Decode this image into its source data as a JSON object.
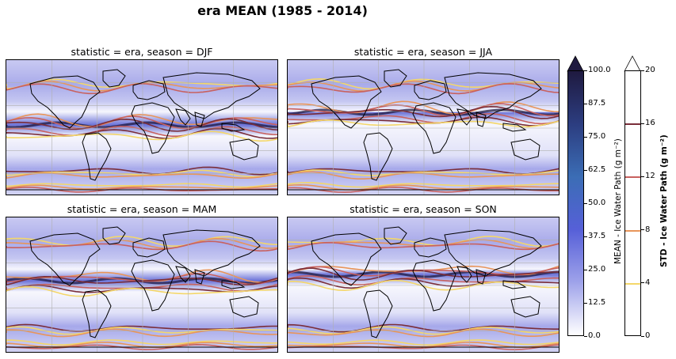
{
  "figure": {
    "title": "era MEAN (1985 - 2014)"
  },
  "panels": [
    {
      "title": "statistic = era, season = DJF"
    },
    {
      "title": "statistic = era, season = JJA"
    },
    {
      "title": "statistic = era, season = MAM"
    },
    {
      "title": "statistic = era, season = SON"
    }
  ],
  "colorbar_mean": {
    "label": "MEAN - Ice Water Path (g m⁻²)",
    "ticks": [
      "0.0",
      "12.5",
      "25.0",
      "37.5",
      "50.0",
      "62.5",
      "75.0",
      "87.5",
      "100.0"
    ],
    "range": [
      0,
      100
    ],
    "extend": "max",
    "colors": [
      "#ffffff",
      "#9fa3ea",
      "#5660d8",
      "#3b6db5",
      "#2c3d80",
      "#1f1a40"
    ]
  },
  "colorbar_std": {
    "label": "STD - Ice Water Path (g m⁻²)",
    "ticks": [
      "0",
      "4",
      "8",
      "12",
      "16",
      "20"
    ],
    "range": [
      0,
      20
    ],
    "extend": "max",
    "contour_levels": [
      4,
      8,
      12,
      16
    ],
    "contour_colors": [
      "#f4d76a",
      "#e8955a",
      "#c8615f",
      "#7a2e3a"
    ]
  },
  "colors": {
    "coast": "#000000",
    "gridline": "#b0b0b0",
    "contour_4": "#f4d76a",
    "contour_8": "#e8955a",
    "contour_12": "#c8615f",
    "contour_16": "#7a2e3a",
    "dark_core": "#1f1a40"
  }
}
